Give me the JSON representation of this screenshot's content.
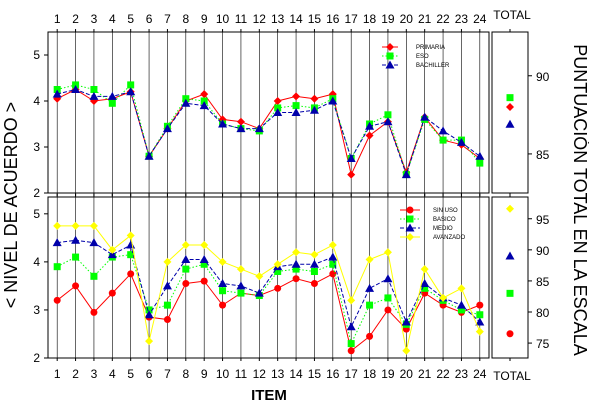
{
  "y_axis_label": "< NIVEL DE ACUERDO >",
  "right_axis_label": "PUNTUACIÓN TOTAL EN LA ESCALA",
  "x_axis_label": "ITEM",
  "total_label_top": "TOTAL",
  "total_label_bottom": "TOTAL",
  "chart_data": [
    {
      "type": "line",
      "x": [
        1,
        2,
        3,
        4,
        5,
        6,
        7,
        8,
        9,
        10,
        11,
        12,
        13,
        14,
        15,
        16,
        17,
        18,
        19,
        20,
        21,
        22,
        23,
        24
      ],
      "xlim": [
        0.5,
        24.5
      ],
      "ylim": [
        2,
        5.5
      ],
      "yticks": [
        2,
        3,
        4,
        5
      ],
      "grid": "vertical",
      "legend_position": "top-right",
      "series": [
        {
          "name": "PRIMARIA",
          "color": "#ff0000",
          "marker": "diamond",
          "dash": "solid",
          "values": [
            4.05,
            4.25,
            4.0,
            4.05,
            4.2,
            2.8,
            3.4,
            4.0,
            4.15,
            3.6,
            3.55,
            3.4,
            4.0,
            4.1,
            4.05,
            4.15,
            2.4,
            3.25,
            3.55,
            2.45,
            3.65,
            3.15,
            3.05,
            2.75
          ]
        },
        {
          "name": "ESO",
          "color": "#00ff00",
          "marker": "square",
          "dash": "dot",
          "values": [
            4.25,
            4.35,
            4.25,
            3.95,
            4.35,
            2.8,
            3.45,
            4.05,
            4.0,
            3.5,
            3.4,
            3.35,
            3.85,
            3.9,
            3.85,
            4.05,
            2.75,
            3.5,
            3.7,
            2.4,
            3.6,
            3.15,
            3.15,
            2.65
          ]
        },
        {
          "name": "BACHILLER",
          "color": "#0000aa",
          "marker": "triangle",
          "dash": "dash",
          "values": [
            4.15,
            4.25,
            4.1,
            4.1,
            4.2,
            2.8,
            3.4,
            3.95,
            3.9,
            3.5,
            3.4,
            3.4,
            3.75,
            3.75,
            3.8,
            4.0,
            2.75,
            3.45,
            3.55,
            2.4,
            3.65,
            3.35,
            3.1,
            2.8
          ]
        }
      ],
      "total": {
        "ylim": [
          82.5,
          92.8
        ],
        "yticks": [
          85,
          90
        ],
        "values": {
          "PRIMARIA": 88.0,
          "ESO": 88.6,
          "BACHILLER": 86.9
        }
      }
    },
    {
      "type": "line",
      "x": [
        1,
        2,
        3,
        4,
        5,
        6,
        7,
        8,
        9,
        10,
        11,
        12,
        13,
        14,
        15,
        16,
        17,
        18,
        19,
        20,
        21,
        22,
        23,
        24
      ],
      "xlim": [
        0.5,
        24.5
      ],
      "ylim": [
        2,
        5.35
      ],
      "yticks": [
        2,
        3,
        4,
        5
      ],
      "grid": "vertical",
      "legend_position": "top-right",
      "series": [
        {
          "name": "SIN USO",
          "color": "#ff0000",
          "marker": "circle",
          "dash": "solid",
          "values": [
            3.2,
            3.5,
            2.95,
            3.35,
            3.75,
            2.85,
            2.8,
            3.55,
            3.6,
            3.1,
            3.35,
            3.3,
            3.45,
            3.65,
            3.55,
            3.75,
            2.15,
            2.45,
            3.0,
            2.6,
            3.35,
            3.1,
            2.95,
            3.1
          ]
        },
        {
          "name": "BASICO",
          "color": "#00ff00",
          "marker": "square",
          "dash": "dot",
          "values": [
            3.9,
            4.1,
            3.7,
            4.1,
            4.15,
            3.0,
            3.1,
            3.85,
            3.95,
            3.4,
            3.35,
            3.3,
            3.8,
            3.85,
            3.8,
            3.95,
            2.3,
            3.1,
            3.25,
            2.7,
            3.45,
            3.2,
            3.0,
            2.9
          ]
        },
        {
          "name": "MEDIO",
          "color": "#0000aa",
          "marker": "triangle",
          "dash": "dash",
          "values": [
            4.4,
            4.45,
            4.4,
            4.15,
            4.35,
            2.9,
            3.5,
            4.05,
            4.05,
            3.55,
            3.5,
            3.35,
            3.9,
            3.95,
            3.95,
            4.1,
            2.65,
            3.45,
            3.65,
            2.75,
            3.55,
            3.25,
            3.1,
            2.75
          ]
        },
        {
          "name": "AVANZADO",
          "color": "#ffff00",
          "marker": "diamond",
          "dash": "solid",
          "values": [
            4.75,
            4.75,
            4.75,
            4.25,
            4.55,
            2.35,
            4.0,
            4.35,
            4.35,
            4.0,
            3.85,
            3.7,
            3.95,
            4.2,
            4.15,
            4.35,
            3.2,
            4.05,
            4.2,
            2.15,
            3.85,
            3.25,
            3.45,
            2.55
          ]
        }
      ],
      "total": {
        "ylim": [
          72.6,
          98.5
        ],
        "yticks": [
          75,
          80,
          85,
          90,
          95
        ],
        "values": {
          "SIN USO": 76.5,
          "BASICO": 83.0,
          "MEDIO": 89.0,
          "AVANZADO": 96.6
        }
      }
    }
  ]
}
